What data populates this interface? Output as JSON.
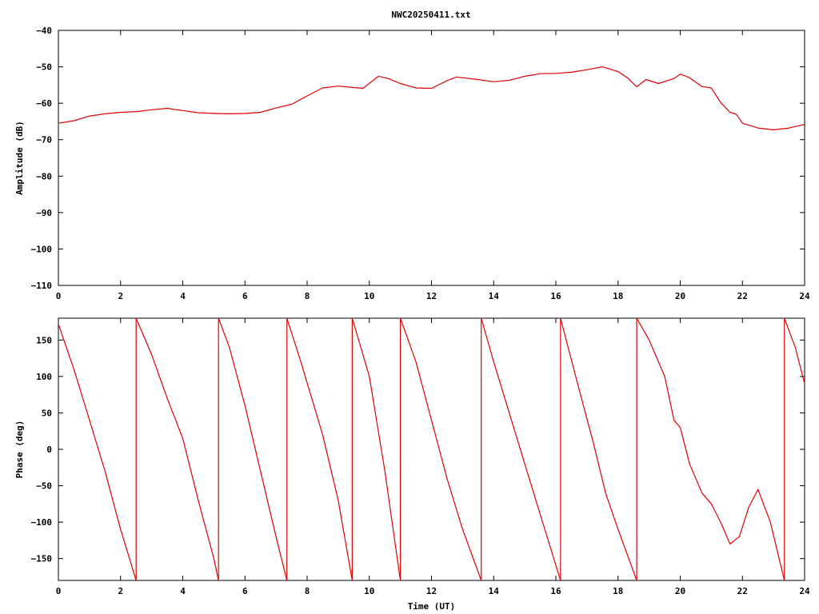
{
  "title": "NWC20250411.txt",
  "chart_data": [
    {
      "type": "line",
      "ylabel": "Amplitude (dB)",
      "xlabel": "",
      "xlim": [
        0,
        24
      ],
      "ylim": [
        -110,
        -40
      ],
      "x_ticks": [
        0,
        2,
        4,
        6,
        8,
        10,
        12,
        14,
        16,
        18,
        20,
        22,
        24
      ],
      "y_ticks": [
        -110,
        -100,
        -90,
        -80,
        -70,
        -60,
        -50,
        -40
      ],
      "x_tick_labels": [
        "0",
        "2",
        "4",
        "6",
        "8",
        "10",
        "12",
        "14",
        "16",
        "18",
        "20",
        "22",
        "24"
      ],
      "y_tick_labels": [
        "−110",
        "−100",
        "−90",
        "−80",
        "−70",
        "−60",
        "−50",
        "−40"
      ],
      "series": [
        {
          "color": "#e00000",
          "points": [
            [
              0,
              -65.5
            ],
            [
              0.5,
              -64.8
            ],
            [
              1,
              -63.5
            ],
            [
              1.5,
              -62.9
            ],
            [
              2,
              -62.5
            ],
            [
              2.5,
              -62.3
            ],
            [
              3,
              -61.8
            ],
            [
              3.5,
              -61.4
            ],
            [
              4,
              -62.0
            ],
            [
              4.5,
              -62.6
            ],
            [
              5,
              -62.8
            ],
            [
              5.5,
              -62.9
            ],
            [
              6,
              -62.8
            ],
            [
              6.5,
              -62.5
            ],
            [
              7,
              -61.3
            ],
            [
              7.5,
              -60.3
            ],
            [
              8,
              -58.0
            ],
            [
              8.5,
              -55.8
            ],
            [
              9,
              -55.3
            ],
            [
              9.5,
              -55.7
            ],
            [
              9.8,
              -55.9
            ],
            [
              10,
              -54.5
            ],
            [
              10.3,
              -52.6
            ],
            [
              10.6,
              -53.2
            ],
            [
              11,
              -54.6
            ],
            [
              11.5,
              -55.8
            ],
            [
              12,
              -55.9
            ],
            [
              12.5,
              -53.8
            ],
            [
              12.8,
              -52.8
            ],
            [
              13.5,
              -53.5
            ],
            [
              14,
              -54.1
            ],
            [
              14.5,
              -53.7
            ],
            [
              15,
              -52.6
            ],
            [
              15.5,
              -51.9
            ],
            [
              16,
              -51.8
            ],
            [
              16.5,
              -51.5
            ],
            [
              17,
              -50.8
            ],
            [
              17.5,
              -50.0
            ],
            [
              18,
              -51.3
            ],
            [
              18.3,
              -53.0
            ],
            [
              18.6,
              -55.5
            ],
            [
              18.9,
              -53.5
            ],
            [
              19.3,
              -54.6
            ],
            [
              19.8,
              -53.2
            ],
            [
              20,
              -52.0
            ],
            [
              20.3,
              -53.0
            ],
            [
              20.7,
              -55.4
            ],
            [
              21,
              -55.8
            ],
            [
              21.3,
              -59.8
            ],
            [
              21.6,
              -62.5
            ],
            [
              21.8,
              -63.0
            ],
            [
              22,
              -65.5
            ],
            [
              22.5,
              -66.8
            ],
            [
              23,
              -67.3
            ],
            [
              23.5,
              -66.8
            ],
            [
              24,
              -65.8
            ]
          ]
        }
      ]
    },
    {
      "type": "line",
      "ylabel": "Phase (deg)",
      "xlabel": "Time (UT)",
      "xlim": [
        0,
        24
      ],
      "ylim": [
        -180,
        180
      ],
      "x_ticks": [
        0,
        2,
        4,
        6,
        8,
        10,
        12,
        14,
        16,
        18,
        20,
        22,
        24
      ],
      "y_ticks": [
        -150,
        -100,
        -50,
        0,
        50,
        100,
        150
      ],
      "x_tick_labels": [
        "0",
        "2",
        "4",
        "6",
        "8",
        "10",
        "12",
        "14",
        "16",
        "18",
        "20",
        "22",
        "24"
      ],
      "y_tick_labels": [
        "−150",
        "−100",
        "−50",
        "0",
        "50",
        "100",
        "150"
      ],
      "series": [
        {
          "color": "#e00000",
          "segments": [
            [
              [
                0,
                172
              ],
              [
                0.5,
                110
              ],
              [
                1,
                40
              ],
              [
                1.5,
                -30
              ],
              [
                2,
                -110
              ],
              [
                2.5,
                -180
              ]
            ],
            [
              [
                2.5,
                180
              ],
              [
                3,
                130
              ],
              [
                3.5,
                70
              ],
              [
                4,
                15
              ],
              [
                4.5,
                -70
              ],
              [
                5,
                -150
              ],
              [
                5.15,
                -180
              ]
            ],
            [
              [
                5.15,
                180
              ],
              [
                5.5,
                140
              ],
              [
                6,
                60
              ],
              [
                6.5,
                -30
              ],
              [
                7,
                -120
              ],
              [
                7.35,
                -180
              ]
            ],
            [
              [
                7.35,
                180
              ],
              [
                7.8,
                120
              ],
              [
                8.5,
                20
              ],
              [
                9,
                -70
              ],
              [
                9.45,
                -180
              ]
            ],
            [
              [
                9.45,
                180
              ],
              [
                10,
                100
              ],
              [
                10.5,
                -30
              ],
              [
                11,
                -180
              ]
            ],
            [
              [
                11,
                180
              ],
              [
                11.5,
                120
              ],
              [
                12,
                40
              ],
              [
                12.5,
                -40
              ],
              [
                13,
                -110
              ],
              [
                13.6,
                -180
              ]
            ],
            [
              [
                13.6,
                180
              ],
              [
                14,
                120
              ],
              [
                14.5,
                50
              ],
              [
                15,
                -20
              ],
              [
                15.5,
                -90
              ],
              [
                16.15,
                -180
              ]
            ],
            [
              [
                16.15,
                180
              ],
              [
                16.7,
                90
              ],
              [
                17.2,
                10
              ],
              [
                17.6,
                -60
              ],
              [
                18,
                -110
              ],
              [
                18.6,
                -180
              ]
            ],
            [
              [
                18.6,
                180
              ],
              [
                19,
                150
              ],
              [
                19.5,
                100
              ],
              [
                19.8,
                40
              ],
              [
                20,
                30
              ],
              [
                20.3,
                -20
              ],
              [
                20.7,
                -60
              ],
              [
                21,
                -75
              ],
              [
                21.3,
                -100
              ],
              [
                21.6,
                -130
              ],
              [
                21.9,
                -120
              ],
              [
                22.2,
                -80
              ],
              [
                22.5,
                -55
              ],
              [
                22.9,
                -100
              ],
              [
                23.35,
                -180
              ]
            ],
            [
              [
                23.35,
                180
              ],
              [
                23.7,
                140
              ],
              [
                24,
                90
              ]
            ]
          ]
        }
      ]
    }
  ]
}
